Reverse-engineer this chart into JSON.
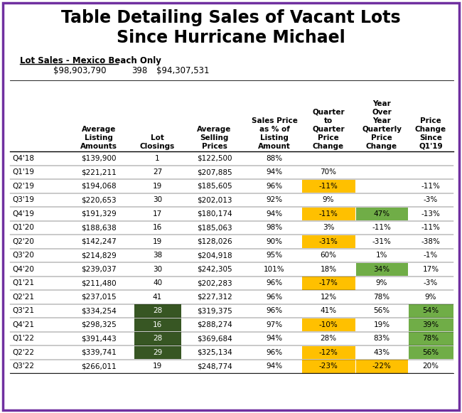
{
  "title": "Table Detailing Sales of Vacant Lots\nSince Hurricane Michael",
  "subtitle_label": "Lot Sales - Mexico Beach Only",
  "subtitle_val1": "$98,903,790",
  "subtitle_val2": "398",
  "subtitle_val3": "$94,307,531",
  "col_headers": [
    "Average\nListing\nAmounts",
    "Lot\nClosings",
    "Average\nSelling\nPrices",
    "Sales Price\nas % of\nListing\nAmount",
    "Quarter\nto\nQuarter\nPrice\nChange",
    "Year\nOver\nYear\nQuarterly\nPrice\nChange",
    "Price\nChange\nSince\nQ1'19"
  ],
  "rows": [
    [
      "Q4'18",
      "$139,900",
      "1",
      "$122,500",
      "88%",
      "",
      "",
      ""
    ],
    [
      "Q1'19",
      "$221,211",
      "27",
      "$207,885",
      "94%",
      "70%",
      "",
      ""
    ],
    [
      "Q2'19",
      "$194,068",
      "19",
      "$185,605",
      "96%",
      "-11%",
      "",
      "-11%"
    ],
    [
      "Q3'19",
      "$220,653",
      "30",
      "$202,013",
      "92%",
      "9%",
      "",
      "-3%"
    ],
    [
      "Q4'19",
      "$191,329",
      "17",
      "$180,174",
      "94%",
      "-11%",
      "47%",
      "-13%"
    ],
    [
      "Q1'20",
      "$188,638",
      "16",
      "$185,063",
      "98%",
      "3%",
      "-11%",
      "-11%"
    ],
    [
      "Q2'20",
      "$142,247",
      "19",
      "$128,026",
      "90%",
      "-31%",
      "-31%",
      "-38%"
    ],
    [
      "Q3'20",
      "$214,829",
      "38",
      "$204,918",
      "95%",
      "60%",
      "1%",
      "-1%"
    ],
    [
      "Q4'20",
      "$239,037",
      "30",
      "$242,305",
      "101%",
      "18%",
      "34%",
      "17%"
    ],
    [
      "Q1'21",
      "$211,480",
      "40",
      "$202,283",
      "96%",
      "-17%",
      "9%",
      "-3%"
    ],
    [
      "Q2'21",
      "$237,015",
      "41",
      "$227,312",
      "96%",
      "12%",
      "78%",
      "9%"
    ],
    [
      "Q3'21",
      "$334,254",
      "28",
      "$319,375",
      "96%",
      "41%",
      "56%",
      "54%"
    ],
    [
      "Q4'21",
      "$298,325",
      "16",
      "$288,274",
      "97%",
      "-10%",
      "19%",
      "39%"
    ],
    [
      "Q1'22",
      "$391,443",
      "28",
      "$369,684",
      "94%",
      "28%",
      "83%",
      "78%"
    ],
    [
      "Q2'22",
      "$339,741",
      "29",
      "$325,134",
      "96%",
      "-12%",
      "43%",
      "56%"
    ],
    [
      "Q3'22",
      "$266,011",
      "19",
      "$248,774",
      "94%",
      "-23%",
      "-22%",
      "20%"
    ]
  ],
  "orange_color": "#FFC000",
  "light_green_color": "#70AD47",
  "dark_green_color": "#375623",
  "border_color": "#7030A0",
  "background_color": "#FFFFFF",
  "cell_highlights": [
    {
      "row": "Q2'19",
      "col": 5,
      "bg": "orange",
      "fg": "black"
    },
    {
      "row": "Q4'19",
      "col": 5,
      "bg": "orange",
      "fg": "black"
    },
    {
      "row": "Q4'19",
      "col": 6,
      "bg": "lightgreen",
      "fg": "black"
    },
    {
      "row": "Q2'20",
      "col": 5,
      "bg": "orange",
      "fg": "black"
    },
    {
      "row": "Q4'20",
      "col": 6,
      "bg": "lightgreen",
      "fg": "black"
    },
    {
      "row": "Q1'21",
      "col": 5,
      "bg": "orange",
      "fg": "black"
    },
    {
      "row": "Q3'21",
      "col": 2,
      "bg": "darkgreen",
      "fg": "white"
    },
    {
      "row": "Q3'21",
      "col": 7,
      "bg": "lightgreen",
      "fg": "black"
    },
    {
      "row": "Q4'21",
      "col": 2,
      "bg": "darkgreen",
      "fg": "white"
    },
    {
      "row": "Q4'21",
      "col": 5,
      "bg": "orange",
      "fg": "black"
    },
    {
      "row": "Q4'21",
      "col": 7,
      "bg": "lightgreen",
      "fg": "black"
    },
    {
      "row": "Q1'22",
      "col": 2,
      "bg": "darkgreen",
      "fg": "white"
    },
    {
      "row": "Q1'22",
      "col": 7,
      "bg": "lightgreen",
      "fg": "black"
    },
    {
      "row": "Q2'22",
      "col": 2,
      "bg": "darkgreen",
      "fg": "white"
    },
    {
      "row": "Q2'22",
      "col": 5,
      "bg": "orange",
      "fg": "black"
    },
    {
      "row": "Q2'22",
      "col": 7,
      "bg": "lightgreen",
      "fg": "black"
    },
    {
      "row": "Q3'22",
      "col": 5,
      "bg": "orange",
      "fg": "black"
    },
    {
      "row": "Q3'22",
      "col": 6,
      "bg": "orange",
      "fg": "black"
    }
  ]
}
